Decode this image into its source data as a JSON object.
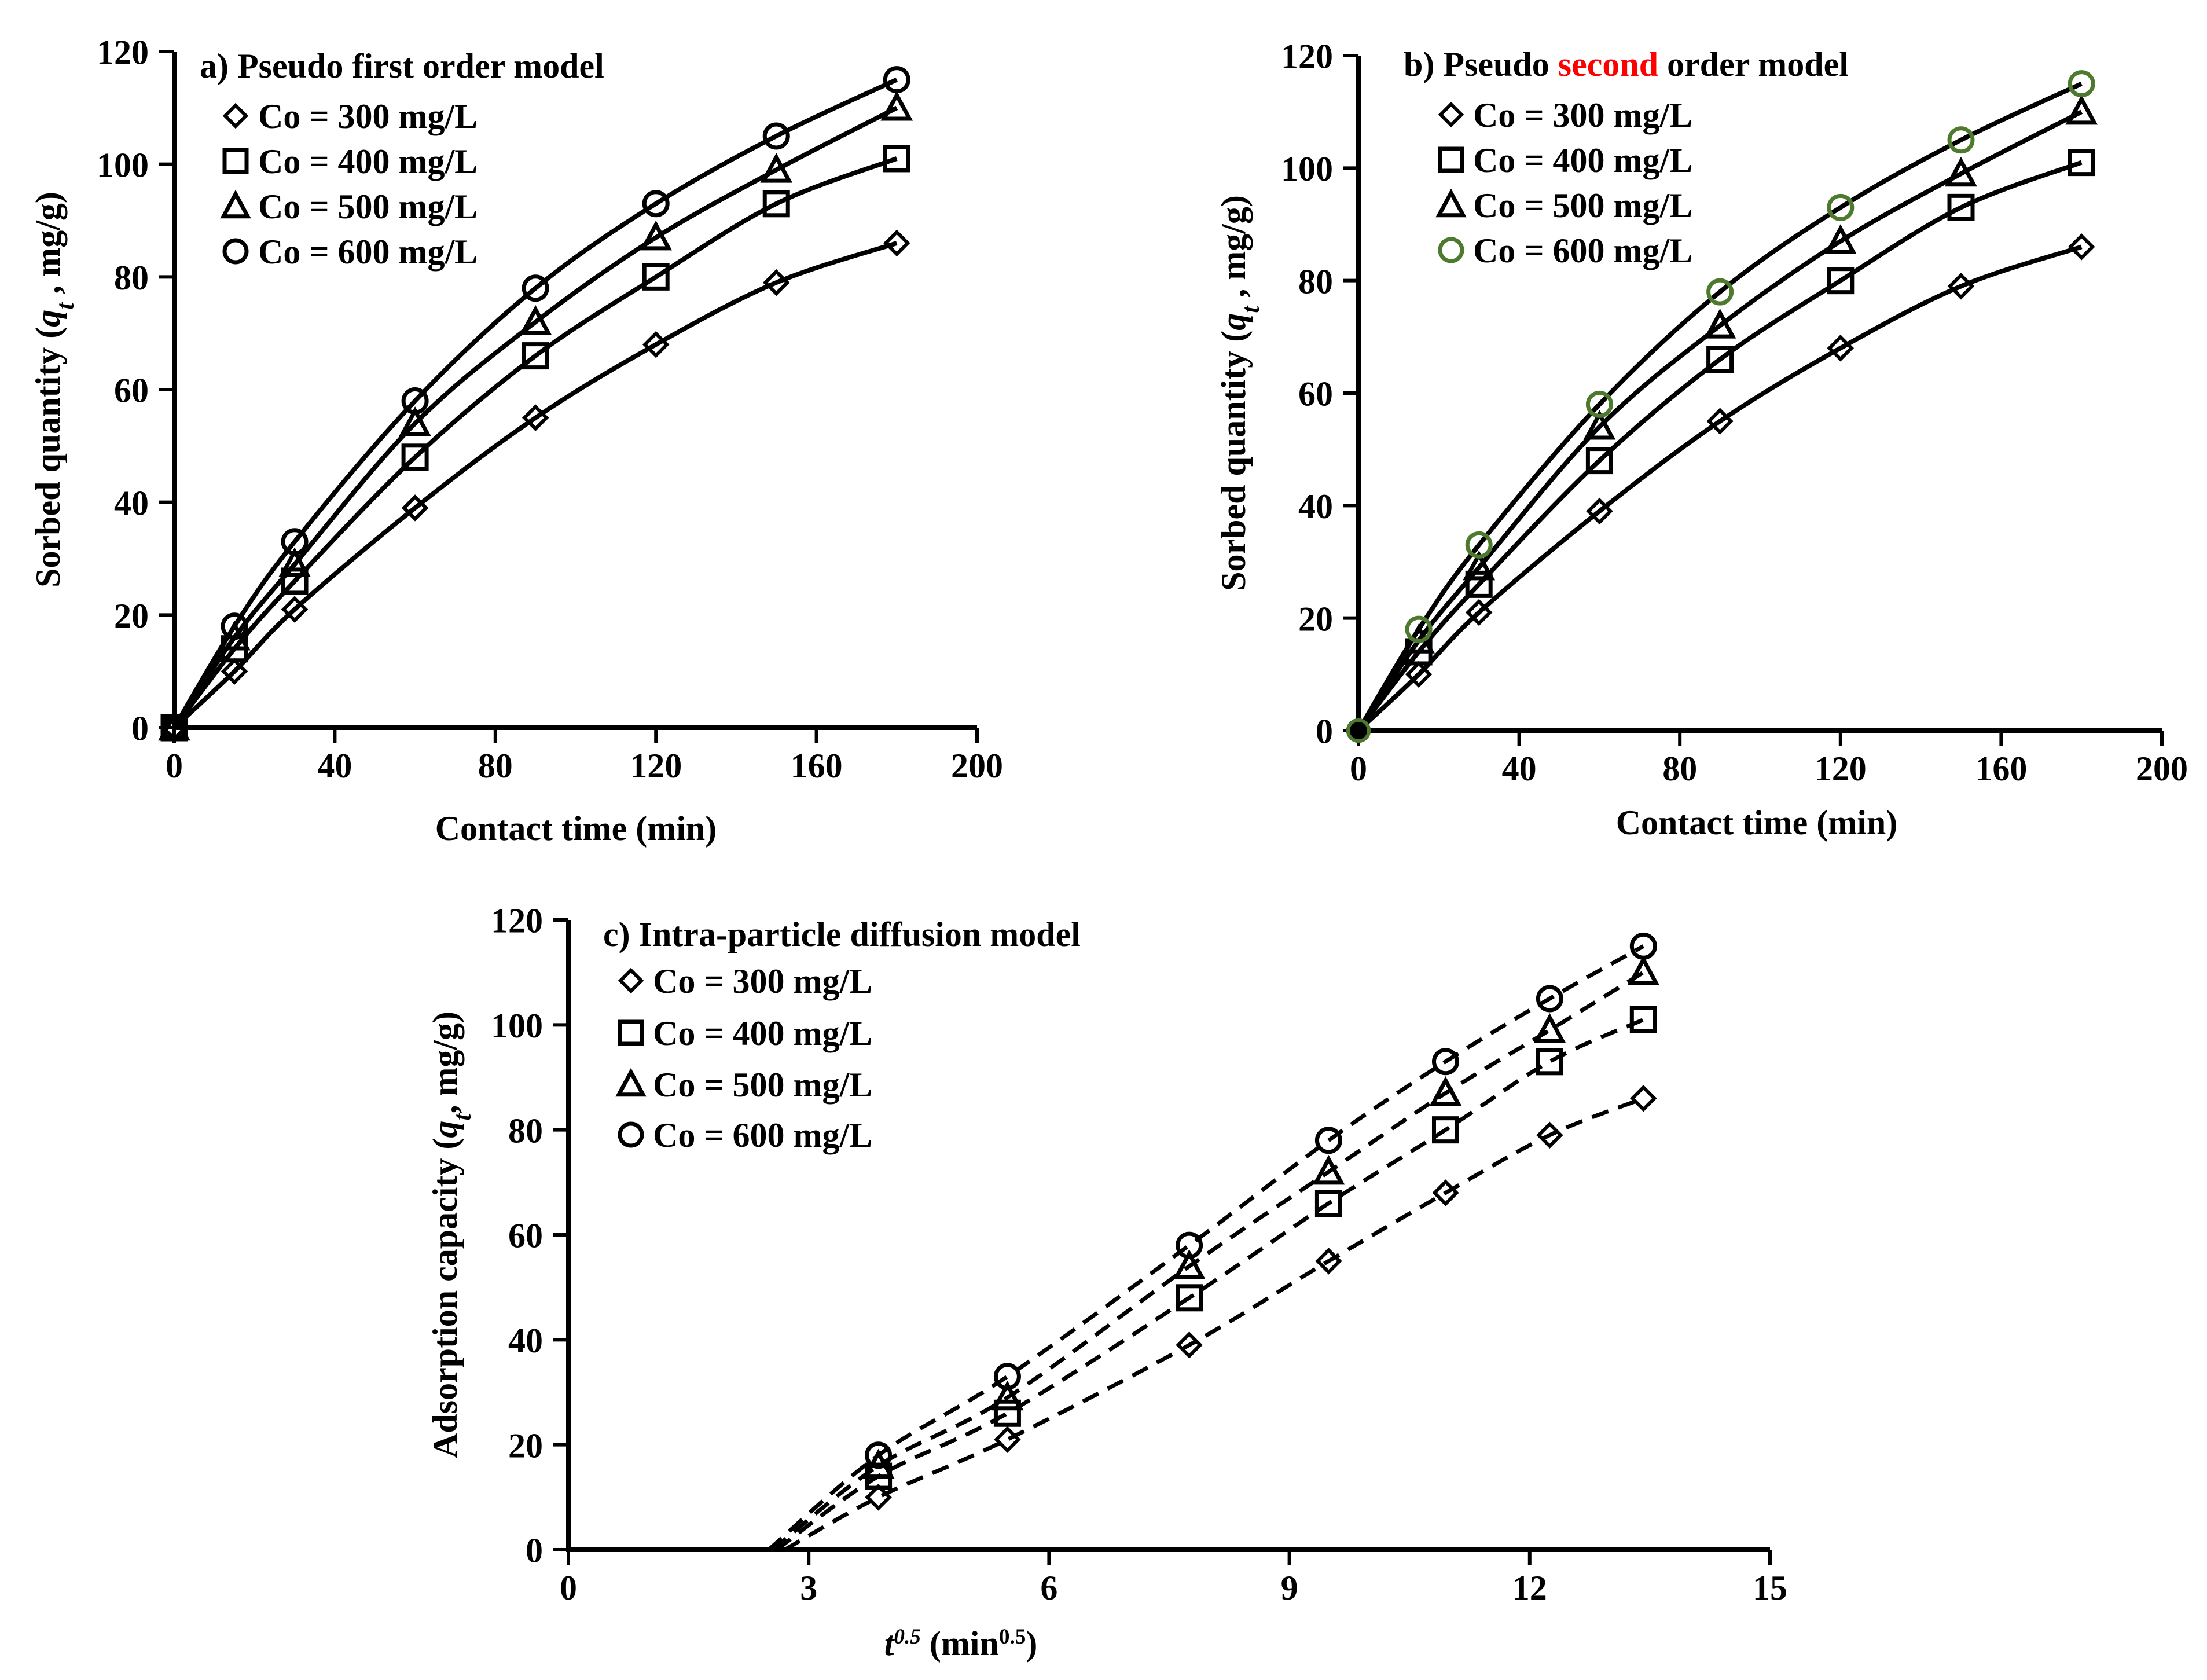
{
  "chart_data": [
    {
      "id": "a",
      "type": "scatter",
      "title": "a) Pseudo first order model",
      "title_parts": [
        {
          "text": "a) Pseudo first order model",
          "color": "#000000"
        }
      ],
      "xlabel": "Contact time (min)",
      "ylabel_parts": [
        {
          "text": "Sorbed quantity (",
          "italic": false
        },
        {
          "text": "q",
          "italic": true
        },
        {
          "text": "t",
          "italic": true,
          "sub": true
        },
        {
          "text": " , mg/g)",
          "italic": false
        }
      ],
      "xlim": [
        0,
        200
      ],
      "ylim": [
        0,
        120
      ],
      "xticks": [
        0,
        40,
        80,
        120,
        160,
        200
      ],
      "yticks": [
        0,
        20,
        40,
        60,
        80,
        100,
        120
      ],
      "grid": false,
      "legend_position": "top-left",
      "fit": "solid-curve",
      "series": [
        {
          "name": "Co = 300 mg/L",
          "marker": "diamond",
          "color": "#000000",
          "x": [
            0,
            15,
            30,
            60,
            90,
            120,
            150,
            180
          ],
          "y": [
            0,
            10,
            21,
            39,
            55,
            68,
            79,
            86
          ]
        },
        {
          "name": "Co = 400 mg/L",
          "marker": "square",
          "color": "#000000",
          "x": [
            0,
            15,
            30,
            60,
            90,
            120,
            150,
            180
          ],
          "y": [
            0,
            14,
            26,
            48,
            66,
            80,
            93,
            101
          ]
        },
        {
          "name": "Co = 500 mg/L",
          "marker": "triangle",
          "color": "#000000",
          "x": [
            0,
            15,
            30,
            60,
            90,
            120,
            150,
            180
          ],
          "y": [
            0,
            16,
            29,
            54,
            72,
            87,
            99,
            110
          ]
        },
        {
          "name": "Co = 600 mg/L",
          "marker": "circle",
          "color": "#000000",
          "x": [
            0,
            15,
            30,
            60,
            90,
            120,
            150,
            180
          ],
          "y": [
            0,
            18,
            33,
            58,
            78,
            93,
            105,
            115
          ]
        }
      ]
    },
    {
      "id": "b",
      "type": "scatter",
      "title": "b) Pseudo second order model",
      "title_parts": [
        {
          "text": "b) Pseudo ",
          "color": "#000000"
        },
        {
          "text": "second",
          "color": "#ff0000"
        },
        {
          "text": " order model",
          "color": "#000000"
        }
      ],
      "xlabel": "Contact time (min)",
      "ylabel_parts": [
        {
          "text": "Sorbed quantity (",
          "italic": false
        },
        {
          "text": "q",
          "italic": true
        },
        {
          "text": "t",
          "italic": true,
          "sub": true
        },
        {
          "text": " , mg/g)",
          "italic": false
        }
      ],
      "xlim": [
        0,
        200
      ],
      "ylim": [
        0,
        120
      ],
      "xticks": [
        0,
        40,
        80,
        120,
        160,
        200
      ],
      "yticks": [
        0,
        20,
        40,
        60,
        80,
        100,
        120
      ],
      "grid": false,
      "legend_position": "top-left",
      "fit": "solid-curve",
      "series": [
        {
          "name": "Co = 300 mg/L",
          "marker": "diamond",
          "color": "#000000",
          "x": [
            0,
            15,
            30,
            60,
            90,
            120,
            150,
            180
          ],
          "y": [
            0,
            10,
            21,
            39,
            55,
            68,
            79,
            86
          ]
        },
        {
          "name": "Co = 400 mg/L",
          "marker": "square",
          "color": "#000000",
          "x": [
            0,
            15,
            30,
            60,
            90,
            120,
            150,
            180
          ],
          "y": [
            0,
            14,
            26,
            48,
            66,
            80,
            93,
            101
          ]
        },
        {
          "name": "Co = 500 mg/L",
          "marker": "triangle",
          "color": "#000000",
          "x": [
            0,
            15,
            30,
            60,
            90,
            120,
            150,
            180
          ],
          "y": [
            0,
            16,
            29,
            54,
            72,
            87,
            99,
            110
          ]
        },
        {
          "name": "Co = 600 mg/L",
          "marker": "circle",
          "color": "#4e7a2e",
          "x": [
            0,
            15,
            30,
            60,
            90,
            120,
            150,
            180
          ],
          "y": [
            0,
            18,
            33,
            58,
            78,
            93,
            105,
            115
          ]
        }
      ]
    },
    {
      "id": "c",
      "type": "scatter",
      "title": "c) Intra-particle diffusion model",
      "title_parts": [
        {
          "text": "c) Intra-particle diffusion model",
          "color": "#000000"
        }
      ],
      "xlabel_parts": [
        {
          "text": "t",
          "italic": true
        },
        {
          "text": "0.5",
          "italic": true,
          "sup": true
        },
        {
          "text": "  (min",
          "italic": false
        },
        {
          "text": "0.5",
          "italic": false,
          "sup": true
        },
        {
          "text": ")",
          "italic": false
        }
      ],
      "ylabel_parts": [
        {
          "text": "Adsorption capacity (",
          "italic": false
        },
        {
          "text": "q",
          "italic": true
        },
        {
          "text": "t",
          "italic": true,
          "sub": true
        },
        {
          "text": ", mg/g)",
          "italic": false
        }
      ],
      "xlim": [
        0,
        15
      ],
      "ylim": [
        0,
        120
      ],
      "xticks": [
        0,
        3,
        6,
        9,
        12,
        15
      ],
      "yticks": [
        0,
        20,
        40,
        60,
        80,
        100,
        120
      ],
      "grid": false,
      "legend_position": "top-left",
      "fit": "dashed-curve",
      "series": [
        {
          "name": "Co = 300 mg/L",
          "marker": "diamond",
          "color": "#000000",
          "x": [
            3.87,
            5.48,
            7.75,
            9.49,
            10.95,
            12.25,
            13.42
          ],
          "y": [
            10,
            21,
            39,
            55,
            68,
            79,
            86
          ],
          "fit_start": [
            2.7,
            0
          ]
        },
        {
          "name": "Co = 400 mg/L",
          "marker": "square",
          "color": "#000000",
          "x": [
            3.87,
            5.48,
            7.75,
            9.49,
            10.95,
            12.25,
            13.42
          ],
          "y": [
            14,
            26,
            48,
            66,
            80,
            93,
            101
          ],
          "fit_start": [
            2.6,
            0
          ]
        },
        {
          "name": "Co = 500 mg/L",
          "marker": "triangle",
          "color": "#000000",
          "x": [
            3.87,
            5.48,
            7.75,
            9.49,
            10.95,
            12.25,
            13.42
          ],
          "y": [
            16,
            29,
            54,
            72,
            87,
            99,
            110
          ],
          "fit_start": [
            2.55,
            0
          ]
        },
        {
          "name": "Co = 600 mg/L",
          "marker": "circle",
          "color": "#000000",
          "x": [
            3.87,
            5.48,
            7.75,
            9.49,
            10.95,
            12.25,
            13.42
          ],
          "y": [
            18,
            33,
            58,
            78,
            93,
            105,
            115
          ],
          "fit_start": [
            2.5,
            0
          ]
        }
      ]
    }
  ]
}
